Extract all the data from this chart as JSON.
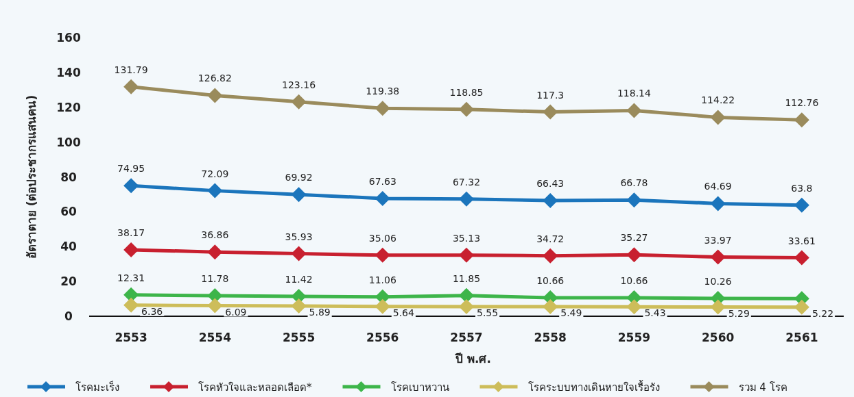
{
  "chart_data": {
    "type": "line",
    "xlabel": "ปี พ.ศ.",
    "ylabel": "อัตราตาย (ต่อประชากรแสนคน)",
    "categories": [
      "2553",
      "2554",
      "2555",
      "2556",
      "2557",
      "2558",
      "2559",
      "2560",
      "2561"
    ],
    "ylim": [
      0,
      160
    ],
    "yticks": [
      0,
      20,
      40,
      60,
      80,
      100,
      120,
      140,
      160
    ],
    "grid": false,
    "legend": "bottom",
    "marker": "diamond",
    "line_style": "solid",
    "series": [
      {
        "name": "โรคมะเร็ง",
        "color": "#1b75bc",
        "values": [
          74.95,
          72.09,
          69.92,
          67.63,
          67.32,
          66.43,
          66.78,
          64.69,
          63.8
        ],
        "value_labels": [
          "74.95",
          "72.09",
          "69.92",
          "67.63",
          "67.32",
          "66.43",
          "66.78",
          "64.69",
          "63.8"
        ]
      },
      {
        "name": "โรคหัวใจและหลอดเลือด*",
        "color": "#c8202f",
        "values": [
          38.17,
          36.86,
          35.93,
          35.06,
          35.13,
          34.72,
          35.27,
          33.97,
          33.61
        ],
        "value_labels": [
          "38.17",
          "36.86",
          "35.93",
          "35.06",
          "35.13",
          "34.72",
          "35.27",
          "33.97",
          "33.61"
        ]
      },
      {
        "name": "โรคเบาหวาน",
        "color": "#3db54a",
        "values": [
          12.31,
          11.78,
          11.42,
          11.06,
          11.85,
          10.66,
          10.66,
          10.26,
          10.13
        ],
        "value_labels": [
          "12.31",
          "11.78",
          "11.42",
          "11.06",
          "11.85",
          "10.66",
          "10.66",
          "10.26",
          null
        ]
      },
      {
        "name": "โรคระบบทางเดินหายใจเรื้อรัง",
        "color": "#cdbd5a",
        "values": [
          6.36,
          6.09,
          5.89,
          5.64,
          5.55,
          5.49,
          5.43,
          5.29,
          5.22
        ],
        "value_labels": [
          "6.36",
          "6.09",
          "5.89",
          "5.64",
          "5.55",
          "5.49",
          "5.43",
          "5.29",
          "5.22"
        ]
      },
      {
        "name": "รวม 4 โรค",
        "color": "#9a8b5c",
        "values": [
          131.79,
          126.82,
          123.16,
          119.38,
          118.85,
          117.3,
          118.14,
          114.22,
          112.76
        ],
        "value_labels": [
          "131.79",
          "126.82",
          "123.16",
          "119.38",
          "118.85",
          "117.3",
          "118.14",
          "114.22",
          "112.76"
        ]
      }
    ]
  }
}
